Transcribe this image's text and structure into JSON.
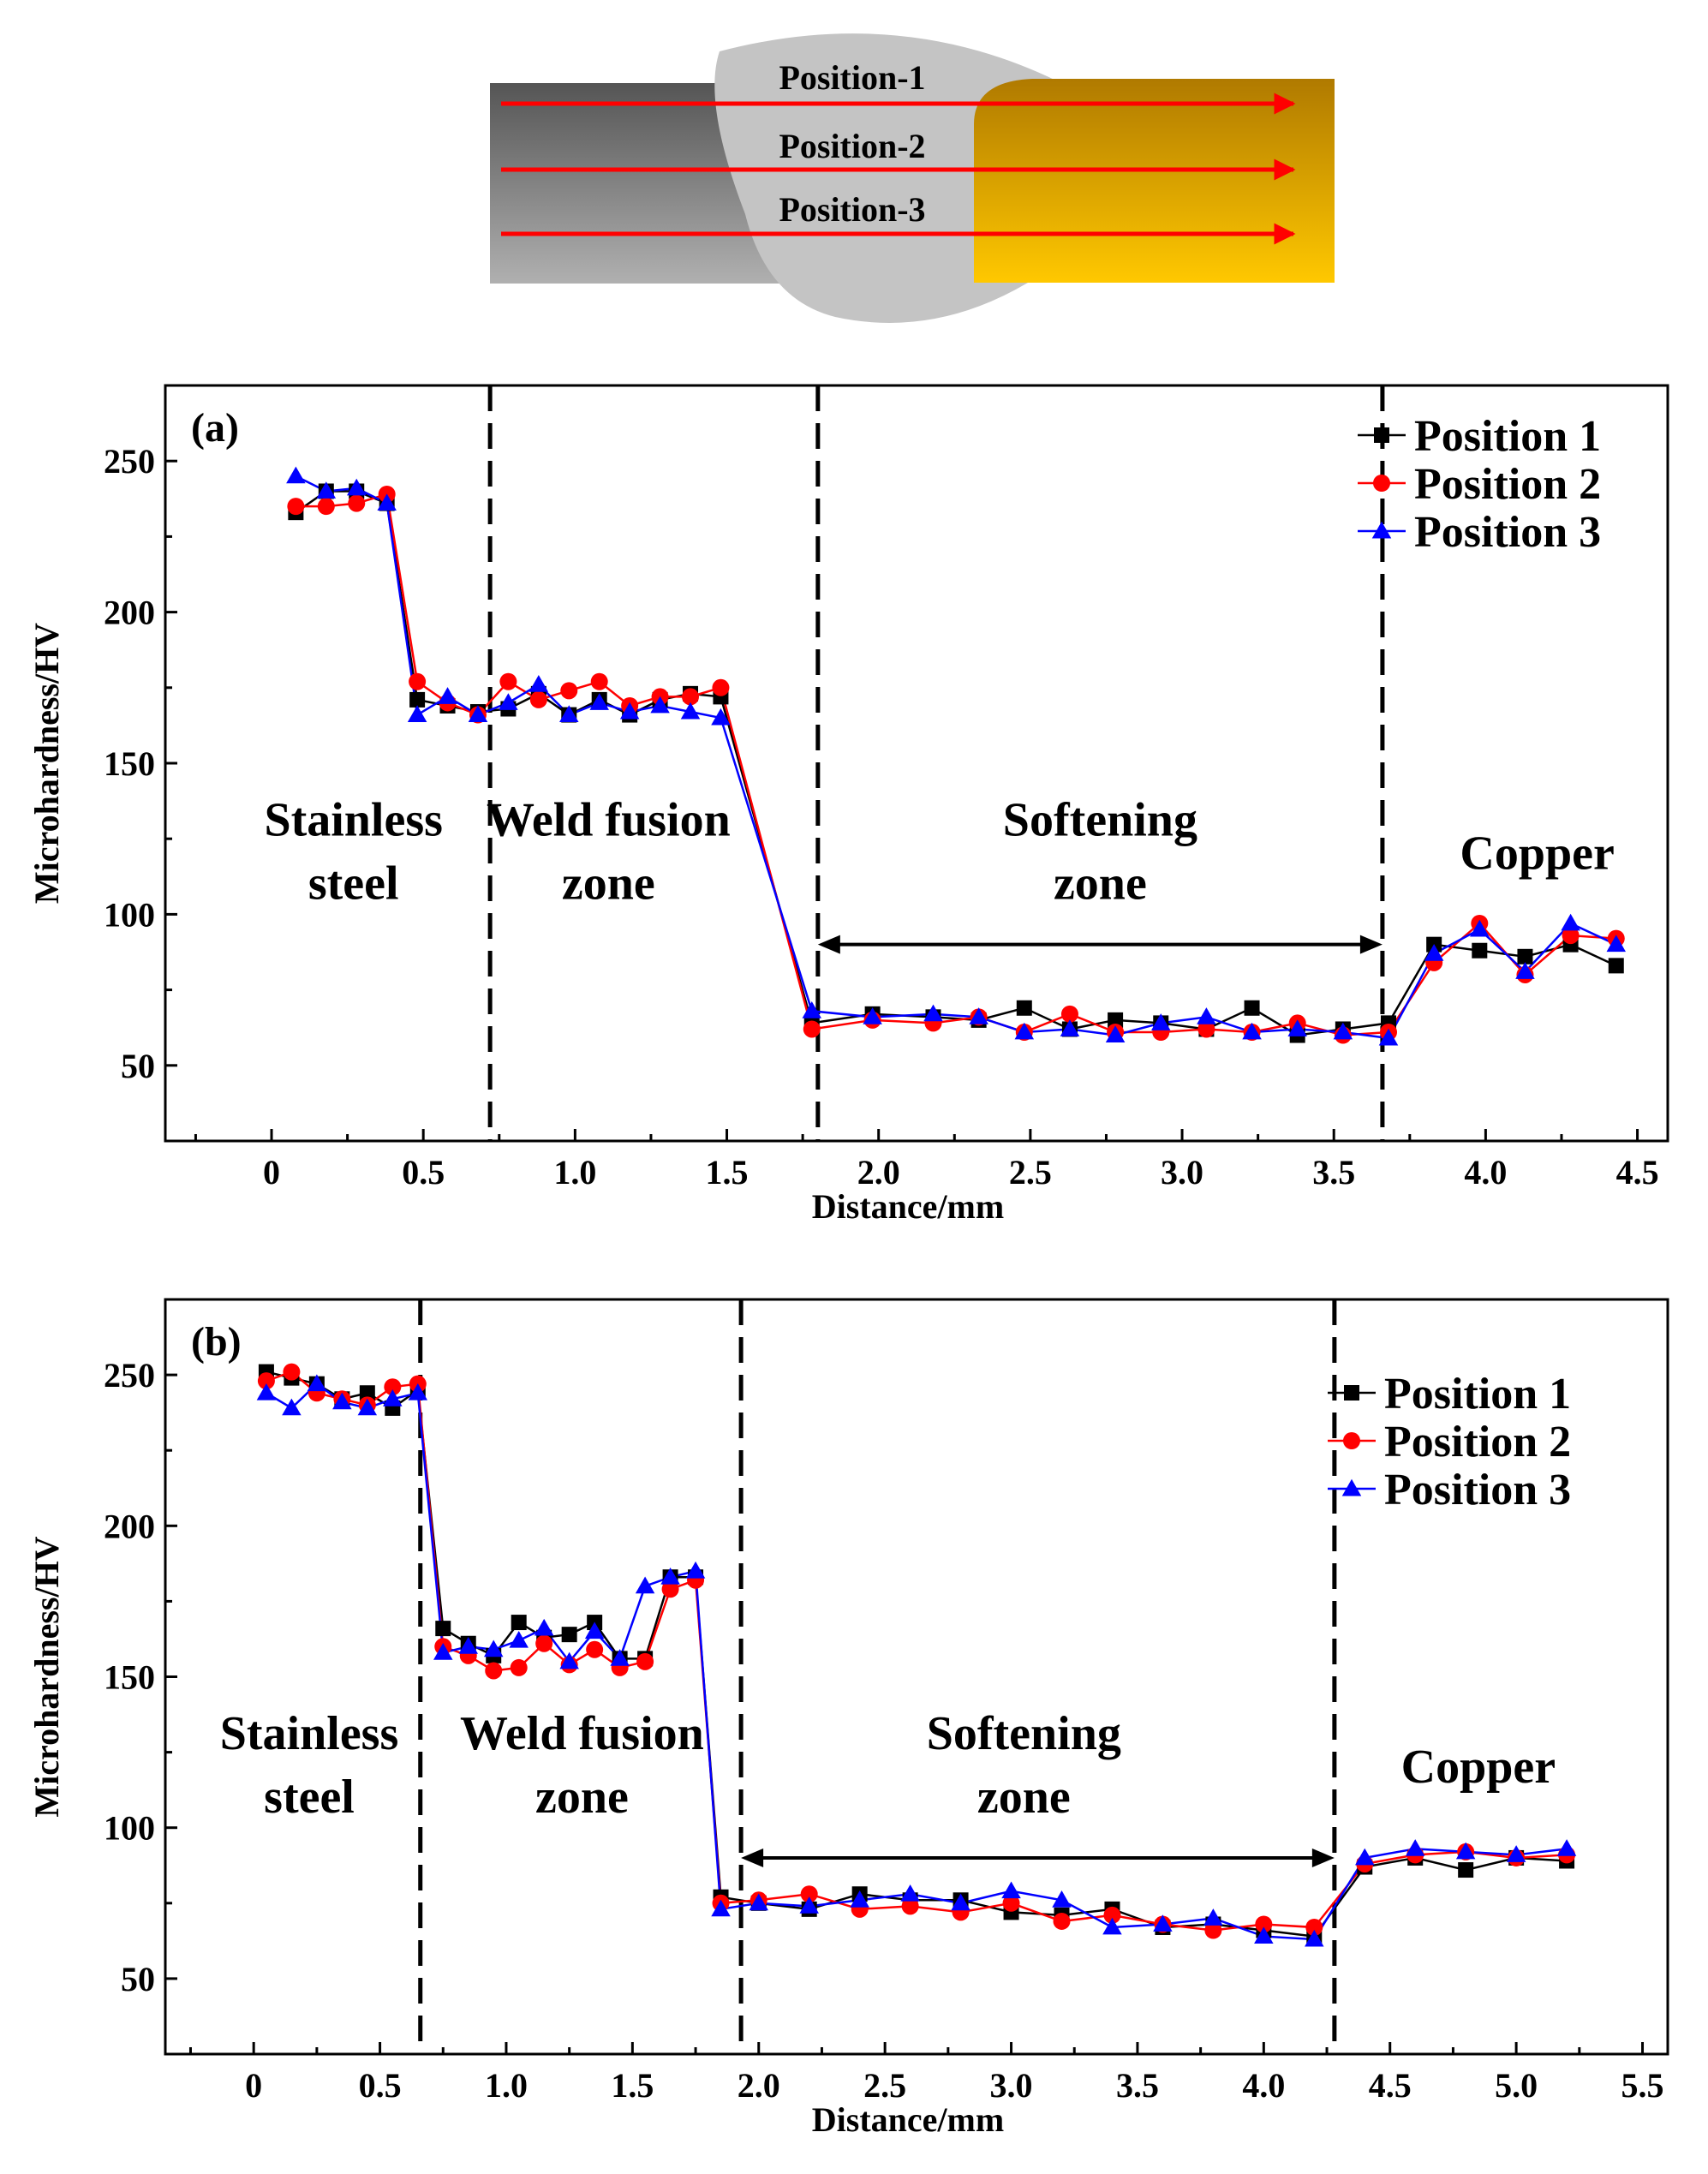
{
  "schematic": {
    "labels": [
      "Position-1",
      "Position-2",
      "Position-3"
    ],
    "colors": {
      "steel_dark": "#555555",
      "steel_light": "#b0b0b0",
      "weld": "#c4c4c4",
      "copper_top": "#b07a00",
      "copper_bottom": "#ffc800",
      "arrow": "#ff0000"
    }
  },
  "chart_data": [
    {
      "type": "line",
      "panel_label": "(a)",
      "xlabel": "Distance/mm",
      "ylabel": "Microhardness/HV",
      "xlim": [
        -0.35,
        4.6
      ],
      "ylim": [
        25,
        275
      ],
      "xticks": [
        0,
        0.5,
        1.0,
        1.5,
        2.0,
        2.5,
        3.0,
        3.5,
        4.0,
        4.5
      ],
      "xtick_labels": [
        "0",
        "0.5",
        "1.0",
        "1.5",
        "2.0",
        "2.5",
        "3.0",
        "3.5",
        "4.0",
        "4.5"
      ],
      "yticks": [
        50,
        100,
        150,
        200,
        250
      ],
      "ytick_labels": [
        "50",
        "100",
        "150",
        "200",
        "250"
      ],
      "boundaries": [
        0.72,
        1.8,
        3.66
      ],
      "zone_labels": [
        {
          "lines": [
            "Stainless",
            "steel"
          ],
          "x": 0.27,
          "y": 126
        },
        {
          "lines": [
            "Weld fusion",
            "zone"
          ],
          "x": 1.11,
          "y": 126
        },
        {
          "lines": [
            "Softening",
            "zone"
          ],
          "x": 2.73,
          "y": 126
        },
        {
          "lines": [
            "Copper"
          ],
          "x": 4.17,
          "y": 115
        }
      ],
      "range_arrow": {
        "x1": 1.8,
        "x2": 3.66,
        "y": 90
      },
      "legend_position": "top-right",
      "series": [
        {
          "name": "Position 1",
          "color": "#000000",
          "marker": "square",
          "x": [
            0.08,
            0.18,
            0.28,
            0.38,
            0.48,
            0.58,
            0.68,
            0.78,
            0.88,
            0.98,
            1.08,
            1.18,
            1.28,
            1.38,
            1.48,
            1.78,
            1.98,
            2.18,
            2.33,
            2.48,
            2.63,
            2.78,
            2.93,
            3.08,
            3.23,
            3.38,
            3.53,
            3.68,
            3.83,
            3.98,
            4.13,
            4.28,
            4.43
          ],
          "y": [
            233,
            240,
            240,
            236,
            171,
            169,
            167,
            168,
            173,
            166,
            171,
            166,
            171,
            173,
            172,
            64,
            67,
            66,
            65,
            69,
            62,
            65,
            64,
            62,
            69,
            60,
            62,
            64,
            90,
            88,
            86,
            90,
            83
          ]
        },
        {
          "name": "Position 2",
          "color": "#ff0000",
          "marker": "circle",
          "x": [
            0.08,
            0.18,
            0.28,
            0.38,
            0.48,
            0.58,
            0.68,
            0.78,
            0.88,
            0.98,
            1.08,
            1.18,
            1.28,
            1.38,
            1.48,
            1.78,
            1.98,
            2.18,
            2.33,
            2.48,
            2.63,
            2.78,
            2.93,
            3.08,
            3.23,
            3.38,
            3.53,
            3.68,
            3.83,
            3.98,
            4.13,
            4.28,
            4.43
          ],
          "y": [
            235,
            235,
            236,
            239,
            177,
            170,
            166,
            177,
            171,
            174,
            177,
            169,
            172,
            172,
            175,
            62,
            65,
            64,
            66,
            61,
            67,
            61,
            61,
            62,
            61,
            64,
            60,
            61,
            84,
            97,
            80,
            93,
            92
          ]
        },
        {
          "name": "Position 3",
          "color": "#0000ff",
          "marker": "triangle",
          "x": [
            0.08,
            0.18,
            0.28,
            0.38,
            0.48,
            0.58,
            0.68,
            0.78,
            0.88,
            0.98,
            1.08,
            1.18,
            1.28,
            1.38,
            1.48,
            1.78,
            1.98,
            2.18,
            2.33,
            2.48,
            2.63,
            2.78,
            2.93,
            3.08,
            3.23,
            3.38,
            3.53,
            3.68,
            3.83,
            3.98,
            4.13,
            4.28,
            4.43
          ],
          "y": [
            245,
            240,
            241,
            236,
            166,
            172,
            166,
            170,
            176,
            166,
            170,
            167,
            169,
            167,
            165,
            68,
            66,
            67,
            66,
            61,
            62,
            60,
            64,
            66,
            61,
            62,
            61,
            59,
            87,
            95,
            81,
            97,
            90
          ]
        }
      ]
    },
    {
      "type": "line",
      "panel_label": "(b)",
      "xlabel": "Distance/mm",
      "ylabel": "Microhardness/HV",
      "xlim": [
        -0.35,
        5.6
      ],
      "ylim": [
        25,
        275
      ],
      "xticks": [
        0,
        0.5,
        1.0,
        1.5,
        2.0,
        2.5,
        3.0,
        3.5,
        4.0,
        4.5,
        5.0,
        5.5
      ],
      "xtick_labels": [
        "0",
        "0.5",
        "1.0",
        "1.5",
        "2.0",
        "2.5",
        "3.0",
        "3.5",
        "4.0",
        "4.5",
        "5.0",
        "5.5"
      ],
      "yticks": [
        50,
        100,
        150,
        200,
        250
      ],
      "ytick_labels": [
        "50",
        "100",
        "150",
        "200",
        "250"
      ],
      "boundaries": [
        0.66,
        1.93,
        4.28
      ],
      "zone_labels": [
        {
          "lines": [
            "Stainless",
            "steel"
          ],
          "x": 0.22,
          "y": 126
        },
        {
          "lines": [
            "Weld fusion",
            "zone"
          ],
          "x": 1.3,
          "y": 126
        },
        {
          "lines": [
            "Softening",
            "zone"
          ],
          "x": 3.05,
          "y": 126
        },
        {
          "lines": [
            "Copper"
          ],
          "x": 4.85,
          "y": 115
        }
      ],
      "range_arrow": {
        "x1": 1.93,
        "x2": 4.28,
        "y": 90
      },
      "legend_position": "top-right",
      "series": [
        {
          "name": "Position 1",
          "color": "#000000",
          "marker": "square",
          "x": [
            0.05,
            0.15,
            0.25,
            0.35,
            0.45,
            0.55,
            0.65,
            0.75,
            0.85,
            0.95,
            1.05,
            1.15,
            1.25,
            1.35,
            1.45,
            1.55,
            1.65,
            1.75,
            1.85,
            2.0,
            2.2,
            2.4,
            2.6,
            2.8,
            3.0,
            3.2,
            3.4,
            3.6,
            3.8,
            4.0,
            4.2,
            4.4,
            4.6,
            4.8,
            5.0,
            5.2
          ],
          "y": [
            251,
            249,
            247,
            242,
            244,
            239,
            245,
            166,
            161,
            157,
            168,
            163,
            164,
            168,
            156,
            156,
            183,
            183,
            77,
            75,
            73,
            78,
            76,
            76,
            72,
            71,
            73,
            67,
            68,
            66,
            64,
            87,
            90,
            86,
            90,
            89
          ]
        },
        {
          "name": "Position 2",
          "color": "#ff0000",
          "marker": "circle",
          "x": [
            0.05,
            0.15,
            0.25,
            0.35,
            0.45,
            0.55,
            0.65,
            0.75,
            0.85,
            0.95,
            1.05,
            1.15,
            1.25,
            1.35,
            1.45,
            1.55,
            1.65,
            1.75,
            1.85,
            2.0,
            2.2,
            2.4,
            2.6,
            2.8,
            3.0,
            3.2,
            3.4,
            3.6,
            3.8,
            4.0,
            4.2,
            4.4,
            4.6,
            4.8,
            5.0,
            5.2
          ],
          "y": [
            248,
            251,
            244,
            242,
            240,
            246,
            247,
            160,
            157,
            152,
            153,
            161,
            154,
            159,
            153,
            155,
            179,
            182,
            75,
            76,
            78,
            73,
            74,
            72,
            75,
            69,
            71,
            68,
            66,
            68,
            67,
            88,
            91,
            92,
            90,
            91
          ]
        },
        {
          "name": "Position 3",
          "color": "#0000ff",
          "marker": "triangle",
          "x": [
            0.05,
            0.15,
            0.25,
            0.35,
            0.45,
            0.55,
            0.65,
            0.75,
            0.85,
            0.95,
            1.05,
            1.15,
            1.25,
            1.35,
            1.45,
            1.55,
            1.65,
            1.75,
            1.85,
            2.0,
            2.2,
            2.4,
            2.6,
            2.8,
            3.0,
            3.2,
            3.4,
            3.6,
            3.8,
            4.0,
            4.2,
            4.4,
            4.6,
            4.8,
            5.0,
            5.2
          ],
          "y": [
            244,
            239,
            247,
            241,
            239,
            242,
            244,
            158,
            160,
            159,
            162,
            166,
            155,
            165,
            156,
            180,
            183,
            185,
            73,
            75,
            74,
            76,
            78,
            75,
            79,
            76,
            67,
            68,
            70,
            64,
            63,
            90,
            93,
            92,
            91,
            93
          ]
        }
      ]
    }
  ]
}
